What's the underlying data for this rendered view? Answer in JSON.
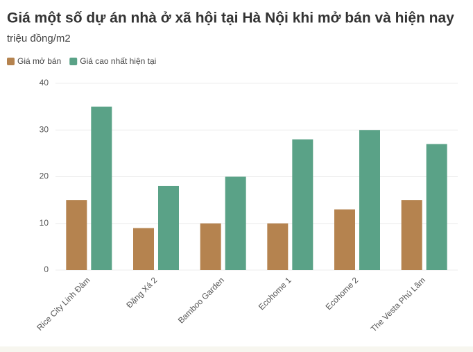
{
  "chart_data": {
    "type": "bar",
    "title": "Giá một số dự án nhà ở xã hội tại Hà Nội khi mở bán và hiện nay",
    "subtitle": "triệu đồng/m2",
    "categories": [
      "Rice City Linh Đàm",
      "Đặng Xá 2",
      "Bamboo Garden",
      "Ecohome 1",
      "Ecohome 2",
      "The Vesta Phú Lãm"
    ],
    "series": [
      {
        "name": "Giá mở bán",
        "color": "#b5834f",
        "values": [
          15,
          9,
          10,
          10,
          13,
          15
        ]
      },
      {
        "name": "Giá cao nhất hiện tại",
        "color": "#5aa287",
        "values": [
          35,
          18,
          20,
          28,
          30,
          27
        ]
      }
    ],
    "ylim": [
      0,
      40
    ],
    "yticks": [
      0,
      10,
      20,
      30,
      40
    ],
    "grid": true
  }
}
